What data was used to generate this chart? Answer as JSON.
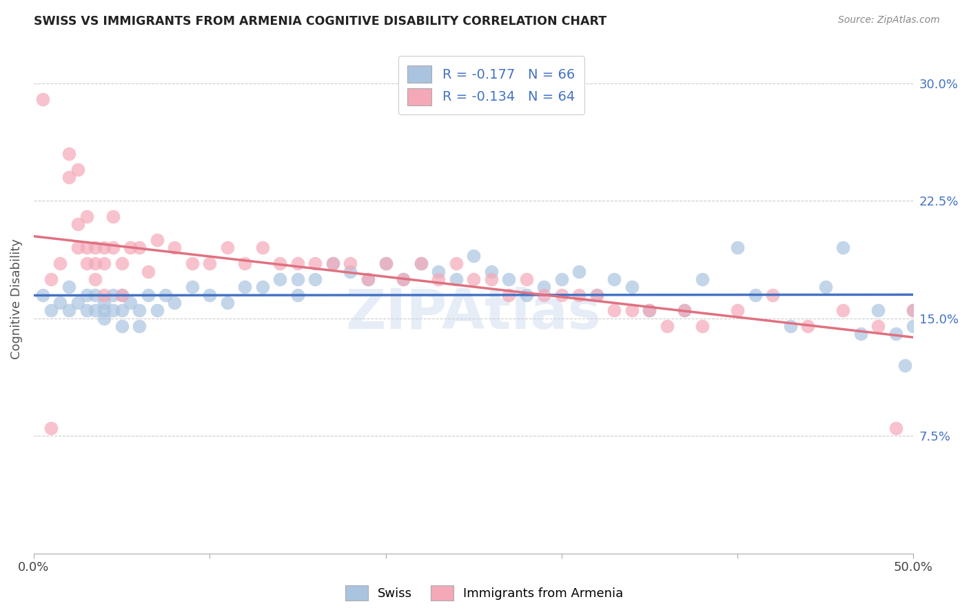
{
  "title": "SWISS VS IMMIGRANTS FROM ARMENIA COGNITIVE DISABILITY CORRELATION CHART",
  "source": "Source: ZipAtlas.com",
  "ylabel": "Cognitive Disability",
  "xlim": [
    0.0,
    0.5
  ],
  "ylim": [
    0.0,
    0.325
  ],
  "yticks": [
    0.075,
    0.15,
    0.225,
    0.3
  ],
  "ytick_labels": [
    "7.5%",
    "15.0%",
    "22.5%",
    "30.0%"
  ],
  "xticks": [
    0.0,
    0.1,
    0.2,
    0.3,
    0.4,
    0.5
  ],
  "xtick_labels": [
    "0.0%",
    "",
    "",
    "",
    "",
    "50.0%"
  ],
  "swiss_R": -0.177,
  "swiss_N": 66,
  "armenia_R": -0.134,
  "armenia_N": 64,
  "swiss_color": "#aac4e0",
  "armenia_color": "#f4a8b8",
  "swiss_line_color": "#4472c4",
  "armenia_line_color": "#e07080",
  "watermark": "ZIPAtlas",
  "swiss_x": [
    0.005,
    0.01,
    0.015,
    0.02,
    0.02,
    0.025,
    0.03,
    0.03,
    0.035,
    0.035,
    0.04,
    0.04,
    0.04,
    0.045,
    0.045,
    0.05,
    0.05,
    0.05,
    0.055,
    0.06,
    0.06,
    0.065,
    0.07,
    0.075,
    0.08,
    0.09,
    0.1,
    0.11,
    0.12,
    0.13,
    0.14,
    0.15,
    0.15,
    0.16,
    0.17,
    0.18,
    0.19,
    0.2,
    0.21,
    0.22,
    0.23,
    0.24,
    0.25,
    0.26,
    0.27,
    0.28,
    0.29,
    0.3,
    0.31,
    0.32,
    0.33,
    0.34,
    0.35,
    0.37,
    0.38,
    0.4,
    0.41,
    0.43,
    0.45,
    0.46,
    0.47,
    0.48,
    0.49,
    0.495,
    0.5,
    0.5
  ],
  "swiss_y": [
    0.165,
    0.155,
    0.16,
    0.155,
    0.17,
    0.16,
    0.155,
    0.165,
    0.155,
    0.165,
    0.15,
    0.155,
    0.16,
    0.155,
    0.165,
    0.145,
    0.155,
    0.165,
    0.16,
    0.145,
    0.155,
    0.165,
    0.155,
    0.165,
    0.16,
    0.17,
    0.165,
    0.16,
    0.17,
    0.17,
    0.175,
    0.165,
    0.175,
    0.175,
    0.185,
    0.18,
    0.175,
    0.185,
    0.175,
    0.185,
    0.18,
    0.175,
    0.19,
    0.18,
    0.175,
    0.165,
    0.17,
    0.175,
    0.18,
    0.165,
    0.175,
    0.17,
    0.155,
    0.155,
    0.175,
    0.195,
    0.165,
    0.145,
    0.17,
    0.195,
    0.14,
    0.155,
    0.14,
    0.12,
    0.155,
    0.145
  ],
  "armenia_x": [
    0.005,
    0.01,
    0.01,
    0.015,
    0.02,
    0.02,
    0.025,
    0.025,
    0.025,
    0.03,
    0.03,
    0.03,
    0.035,
    0.035,
    0.035,
    0.04,
    0.04,
    0.04,
    0.045,
    0.045,
    0.05,
    0.05,
    0.055,
    0.06,
    0.065,
    0.07,
    0.08,
    0.09,
    0.1,
    0.11,
    0.12,
    0.13,
    0.14,
    0.15,
    0.16,
    0.17,
    0.18,
    0.19,
    0.2,
    0.21,
    0.22,
    0.23,
    0.24,
    0.25,
    0.26,
    0.27,
    0.28,
    0.29,
    0.3,
    0.31,
    0.32,
    0.33,
    0.34,
    0.35,
    0.36,
    0.37,
    0.38,
    0.4,
    0.42,
    0.44,
    0.46,
    0.48,
    0.49,
    0.5
  ],
  "armenia_y": [
    0.29,
    0.175,
    0.08,
    0.185,
    0.24,
    0.255,
    0.195,
    0.21,
    0.245,
    0.185,
    0.195,
    0.215,
    0.175,
    0.185,
    0.195,
    0.165,
    0.185,
    0.195,
    0.195,
    0.215,
    0.165,
    0.185,
    0.195,
    0.195,
    0.18,
    0.2,
    0.195,
    0.185,
    0.185,
    0.195,
    0.185,
    0.195,
    0.185,
    0.185,
    0.185,
    0.185,
    0.185,
    0.175,
    0.185,
    0.175,
    0.185,
    0.175,
    0.185,
    0.175,
    0.175,
    0.165,
    0.175,
    0.165,
    0.165,
    0.165,
    0.165,
    0.155,
    0.155,
    0.155,
    0.145,
    0.155,
    0.145,
    0.155,
    0.165,
    0.145,
    0.155,
    0.145,
    0.08,
    0.155
  ]
}
